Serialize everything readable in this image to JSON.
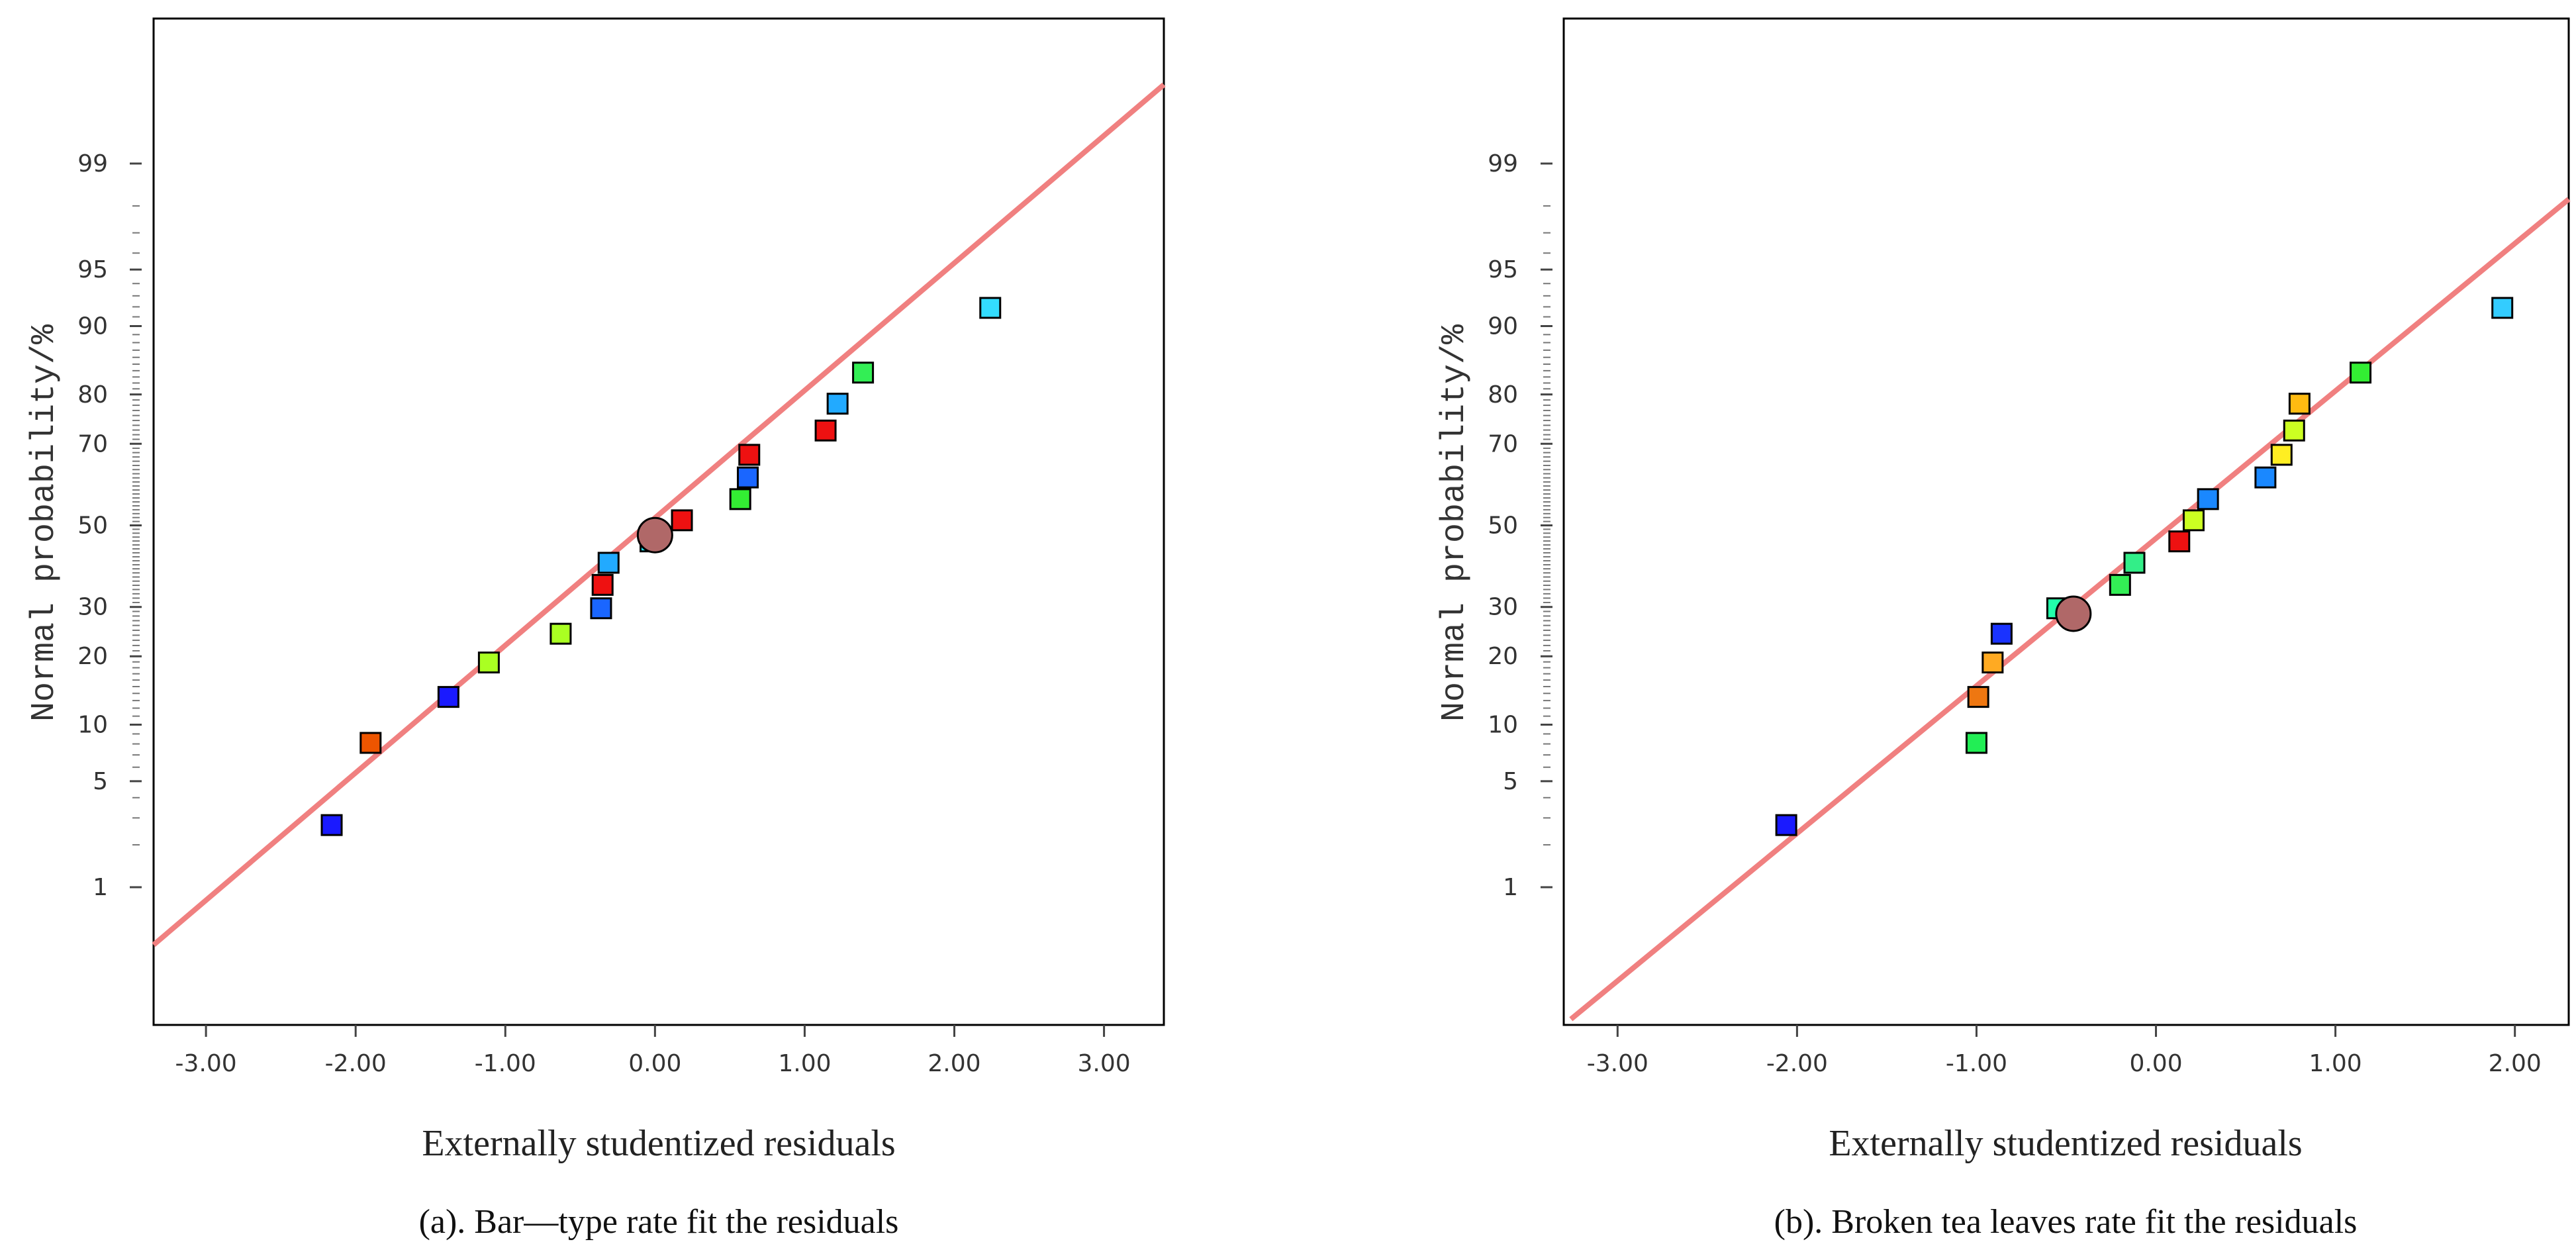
{
  "chart_data": [
    {
      "type": "scatter",
      "title": "",
      "caption": "(a). Bar—type rate fit the residuals",
      "xlabel": "Externally studentized residuals",
      "ylabel": "Normal probability/%",
      "xlim": [
        -3.35,
        3.4
      ],
      "x_ticks": [
        "-3.00",
        "-2.00",
        "-1.00",
        "0.00",
        "1.00",
        "2.00",
        "3.00"
      ],
      "y_scale": "normal-probability",
      "y_tick_labels": [
        "1",
        "5",
        "10",
        "20",
        "30",
        "50",
        "70",
        "80",
        "90",
        "95",
        "99"
      ],
      "fit_line": {
        "x": [
          -3.35,
          3.4
        ],
        "p": [
          0.35,
          99.77
        ]
      },
      "points": [
        {
          "x": -2.16,
          "p": 2.7,
          "color": "#1a1aff"
        },
        {
          "x": -1.9,
          "p": 8.1,
          "color": "#ee5500"
        },
        {
          "x": -1.38,
          "p": 13.5,
          "color": "#1a1aff"
        },
        {
          "x": -1.11,
          "p": 18.9,
          "color": "#aaff22"
        },
        {
          "x": -0.63,
          "p": 24.3,
          "color": "#aaff22"
        },
        {
          "x": -0.36,
          "p": 29.7,
          "color": "#1a66ff"
        },
        {
          "x": -0.35,
          "p": 35.1,
          "color": "#ee1111"
        },
        {
          "x": -0.31,
          "p": 40.5,
          "color": "#22aaff"
        },
        {
          "x": -0.03,
          "p": 45.9,
          "color": "#22eeff"
        },
        {
          "x": 0.0,
          "p": 47.5,
          "color": "#b06868",
          "marker": "circle"
        },
        {
          "x": 0.18,
          "p": 51.3,
          "color": "#ee1111"
        },
        {
          "x": 0.57,
          "p": 56.7,
          "color": "#33ee33"
        },
        {
          "x": 0.62,
          "p": 62.1,
          "color": "#1a66ff"
        },
        {
          "x": 0.63,
          "p": 67.5,
          "color": "#ee1111"
        },
        {
          "x": 1.14,
          "p": 72.9,
          "color": "#ee1111"
        },
        {
          "x": 1.22,
          "p": 78.3,
          "color": "#22aaff"
        },
        {
          "x": 1.39,
          "p": 83.7,
          "color": "#33ee55"
        },
        {
          "x": 2.24,
          "p": 91.9,
          "color": "#33ddff"
        }
      ]
    },
    {
      "type": "scatter",
      "title": "",
      "caption": "(b). Broken tea leaves rate fit the residuals",
      "xlabel": "Externally studentized residuals",
      "ylabel": "Normal probability/%",
      "xlim": [
        -3.3,
        2.3
      ],
      "x_ticks": [
        "-3.00",
        "-2.00",
        "-1.00",
        "0.00",
        "1.00",
        "2.00"
      ],
      "y_scale": "normal-probability",
      "y_tick_labels": [
        "1",
        "5",
        "10",
        "20",
        "30",
        "50",
        "70",
        "80",
        "90",
        "95",
        "99"
      ],
      "fit_line": {
        "x": [
          -3.26,
          2.3
        ],
        "p": [
          0.075,
          98.2
        ]
      },
      "points": [
        {
          "x": -2.06,
          "p": 2.7,
          "color": "#1a1aff"
        },
        {
          "x": -1.0,
          "p": 8.1,
          "color": "#22ee55"
        },
        {
          "x": -0.99,
          "p": 13.5,
          "color": "#ee7711"
        },
        {
          "x": -0.91,
          "p": 18.9,
          "color": "#ffaa22"
        },
        {
          "x": -0.86,
          "p": 24.3,
          "color": "#1a33ff"
        },
        {
          "x": -0.55,
          "p": 29.7,
          "color": "#22ffaa"
        },
        {
          "x": -0.46,
          "p": 28.5,
          "color": "#b06868",
          "marker": "circle"
        },
        {
          "x": -0.2,
          "p": 35.1,
          "color": "#33ee55"
        },
        {
          "x": -0.12,
          "p": 40.5,
          "color": "#33ee88"
        },
        {
          "x": 0.13,
          "p": 45.9,
          "color": "#ee1111"
        },
        {
          "x": 0.21,
          "p": 51.3,
          "color": "#ccff22"
        },
        {
          "x": 0.29,
          "p": 56.7,
          "color": "#1a88ff"
        },
        {
          "x": 0.61,
          "p": 62.1,
          "color": "#1a88ff"
        },
        {
          "x": 0.7,
          "p": 67.5,
          "color": "#ffee22"
        },
        {
          "x": 0.77,
          "p": 72.9,
          "color": "#ccff22"
        },
        {
          "x": 0.8,
          "p": 78.3,
          "color": "#ffbb11"
        },
        {
          "x": 1.14,
          "p": 83.7,
          "color": "#33ee33"
        },
        {
          "x": 1.93,
          "p": 91.9,
          "color": "#33ccff"
        }
      ]
    }
  ]
}
